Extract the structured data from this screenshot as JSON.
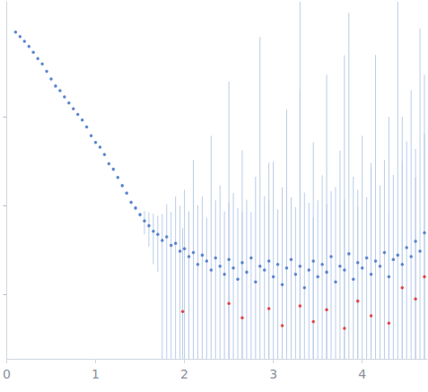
{
  "chart_data": {
    "type": "scatter",
    "log": "y",
    "grid": false,
    "tick_labels": "x",
    "xlim": [
      0,
      4.73
    ],
    "xticks": [
      0,
      1,
      2,
      3,
      4
    ],
    "ylim": [
      0.0019,
      20
    ],
    "yticks": [
      0.01,
      0.1,
      1
    ],
    "series": [
      {
        "color": "#3a6bc4",
        "marker": "circle",
        "x": [
          0.1,
          0.15,
          0.2,
          0.25,
          0.3,
          0.35,
          0.4,
          0.45,
          0.5,
          0.55,
          0.6,
          0.65,
          0.7,
          0.75,
          0.8,
          0.85,
          0.9,
          0.95,
          1.0,
          1.05,
          1.1,
          1.15,
          1.2,
          1.25,
          1.3,
          1.35,
          1.4,
          1.45,
          1.5,
          1.55,
          1.6,
          1.65,
          1.7,
          1.75,
          1.8,
          1.85,
          1.9,
          1.95,
          2.0,
          2.05,
          2.1,
          2.15,
          2.2,
          2.25,
          2.3,
          2.35,
          2.4,
          2.45,
          2.5,
          2.55,
          2.6,
          2.65,
          2.7,
          2.75,
          2.8,
          2.85,
          2.9,
          2.95,
          3.0,
          3.05,
          3.1,
          3.15,
          3.2,
          3.25,
          3.3,
          3.35,
          3.4,
          3.45,
          3.5,
          3.55,
          3.6,
          3.65,
          3.7,
          3.75,
          3.8,
          3.85,
          3.9,
          3.95,
          4.0,
          4.05,
          4.1,
          4.15,
          4.2,
          4.25,
          4.3,
          4.35,
          4.4,
          4.45,
          4.5,
          4.55,
          4.6,
          4.65,
          4.7
        ],
        "values": [
          9.1,
          8.1,
          7.2,
          6.3,
          5.4,
          4.6,
          4.0,
          3.3,
          2.7,
          2.25,
          2.0,
          1.7,
          1.45,
          1.25,
          1.08,
          0.93,
          0.78,
          0.62,
          0.52,
          0.46,
          0.38,
          0.3,
          0.26,
          0.21,
          0.17,
          0.14,
          0.11,
          0.095,
          0.08,
          0.068,
          0.06,
          0.052,
          0.048,
          0.041,
          0.045,
          0.036,
          0.038,
          0.031,
          0.033,
          0.027,
          0.03,
          0.022,
          0.028,
          0.024,
          0.019,
          0.026,
          0.021,
          0.017,
          0.025,
          0.02,
          0.015,
          0.023,
          0.018,
          0.026,
          0.014,
          0.021,
          0.019,
          0.024,
          0.016,
          0.022,
          0.013,
          0.02,
          0.025,
          0.017,
          0.021,
          0.012,
          0.019,
          0.024,
          0.016,
          0.022,
          0.018,
          0.027,
          0.014,
          0.021,
          0.019,
          0.029,
          0.015,
          0.023,
          0.02,
          0.026,
          0.017,
          0.024,
          0.021,
          0.03,
          0.016,
          0.025,
          0.028,
          0.022,
          0.034,
          0.027,
          0.04,
          0.031,
          0.05
        ],
        "errors": [
          0.18,
          0.16,
          0.14,
          0.12,
          0.11,
          0.09,
          0.08,
          0.07,
          0.05,
          0.045,
          0.04,
          0.034,
          0.03,
          0.025,
          0.022,
          0.019,
          0.016,
          0.013,
          0.011,
          0.01,
          0.009,
          0.008,
          0.007,
          0.007,
          0.006,
          0.006,
          0.005,
          0.005,
          0.005,
          0.02,
          0.025,
          0.03,
          0.03,
          0.04,
          0.06,
          0.05,
          0.09,
          0.07,
          0.12,
          0.06,
          0.3,
          0.08,
          0.1,
          0.05,
          0.6,
          0.09,
          0.15,
          0.07,
          2.5,
          0.12,
          0.08,
          0.4,
          0.1,
          0.06,
          0.2,
          8,
          0.11,
          0.09,
          0.3,
          0.07,
          0.15,
          1.2,
          0.1,
          0.08,
          20,
          0.13,
          0.09,
          0.5,
          0.1,
          0.2,
          3,
          0.12,
          0.15,
          0.4,
          0.1,
          15,
          0.2,
          0.13,
          0.6,
          0.1,
          0.25,
          5,
          0.15,
          0.3,
          1,
          0.2,
          20,
          0.3,
          0.5,
          2,
          0.4,
          10,
          0.6
        ]
      },
      {
        "color": "#e02020",
        "marker": "circle",
        "x": [
          1.98,
          2.5,
          2.65,
          2.95,
          3.1,
          3.3,
          3.45,
          3.6,
          3.8,
          3.95,
          4.1,
          4.3,
          4.45,
          4.6,
          4.7
        ],
        "values": [
          0.0065,
          0.008,
          0.0055,
          0.007,
          0.0045,
          0.0075,
          0.005,
          0.0068,
          0.0042,
          0.0085,
          0.0058,
          0.0048,
          0.012,
          0.009,
          0.016
        ],
        "errors": [
          0.05,
          0.1,
          0.08,
          0.3,
          0.06,
          2,
          0.07,
          0.1,
          5,
          0.09,
          0.3,
          0.08,
          1,
          0.2,
          3
        ]
      }
    ]
  }
}
